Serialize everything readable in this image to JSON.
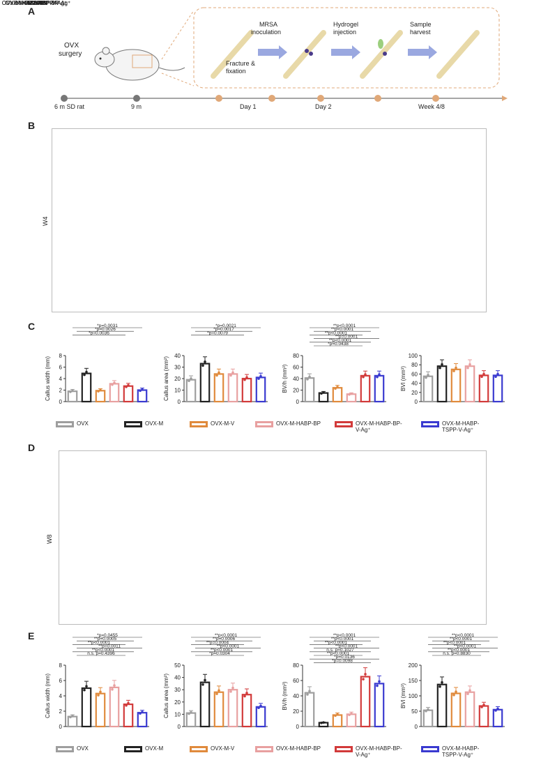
{
  "panels": {
    "A": "A",
    "B": "B",
    "C": "C",
    "D": "D",
    "E": "E"
  },
  "schematic": {
    "ovx_surgery_1": "OVX",
    "ovx_surgery_2": "surgery",
    "mrsa_1": "MRSA",
    "mrsa_2": "inoculation",
    "hydrogel_1": "Hydrogel",
    "hydrogel_2": "injection",
    "sample_1": "Sample",
    "sample_2": "harvest",
    "fracture_1": "Fracture &",
    "fracture_2": "fixation",
    "timeline": [
      "6 m SD rat",
      "9 m",
      "Day 1",
      "Day 2",
      "Week 4/8"
    ]
  },
  "groups": [
    "OVX",
    "OVX-M",
    "OVX-M-V",
    "OVX-M-HABP-BP",
    "OVX-M-HABP-BP-V-Ag⁺",
    "OVX-M-HABP-TSPP-V-Ag⁺"
  ],
  "group_colors": [
    "#9e9e9e",
    "#222222",
    "#e08a3c",
    "#e8a0a0",
    "#d23a3a",
    "#3a3ad0"
  ],
  "rows": {
    "w4": "W4",
    "w8": "W8"
  },
  "legend_c": [
    "OVX",
    "OVX-M",
    "OVX-M-V",
    "OVX-M-HABP-BP",
    "OVX-M-HABP-BP-V-Ag⁺",
    "OVX-M-HABP-TSPP-V-Ag⁺"
  ],
  "legend_e": [
    "OVX",
    "OVX-M",
    "OVX-M-V",
    "OVX-M-HABP-BP",
    "OVX-M-HABP-BP-V-Ag⁺",
    "OVX-M-HABP-TSPP-V-Ag⁺"
  ],
  "chart_data": [
    {
      "type": "bar",
      "panel": "C",
      "ylabel": "Callus width (mm)",
      "ylim": [
        0,
        8
      ],
      "yticks": [
        0,
        2,
        4,
        6,
        8
      ],
      "values": [
        1.8,
        4.9,
        1.9,
        3.1,
        2.7,
        2.0
      ],
      "annotations": [
        "*p=0.0031",
        "*p=0.0026",
        "*p=0.0036"
      ]
    },
    {
      "type": "bar",
      "panel": "C",
      "ylabel": "Callus area (mm²)",
      "ylim": [
        0,
        40
      ],
      "yticks": [
        0,
        10,
        20,
        30,
        40
      ],
      "values": [
        19,
        33,
        24,
        24,
        20,
        21
      ],
      "annotations": [
        "*p=0.0021",
        "*p=0.0017",
        "*p=0.0079"
      ]
    },
    {
      "type": "bar",
      "panel": "C",
      "ylabel": "BV/h (mm³)",
      "ylim": [
        0,
        80
      ],
      "yticks": [
        0,
        20,
        40,
        60,
        80
      ],
      "values": [
        41,
        15,
        24,
        13,
        45,
        45
      ],
      "annotations": [
        "**p<0.0001",
        "**p<0.0001",
        "**p<0.0001",
        "**p=0.0001",
        "**p<0.0001",
        "*p=0.0438"
      ]
    },
    {
      "type": "bar",
      "panel": "C",
      "ylabel": "BVl (mm³)",
      "ylim": [
        0,
        100
      ],
      "yticks": [
        0,
        20,
        40,
        60,
        80,
        100
      ],
      "values": [
        55,
        77,
        70,
        77,
        57,
        57
      ],
      "annotations": []
    },
    {
      "type": "bar",
      "panel": "E",
      "ylabel": "Callus width (mm)",
      "ylim": [
        0,
        8
      ],
      "yticks": [
        0,
        2,
        4,
        6,
        8
      ],
      "values": [
        1.3,
        5.0,
        4.3,
        5.1,
        2.9,
        1.8
      ],
      "annotations": [
        "*p=0.0455",
        "**p=0.0005",
        "**p<0.0001",
        "**p=0.0011",
        "**p<0.0001",
        "n.s. p=0.4396"
      ]
    },
    {
      "type": "bar",
      "panel": "E",
      "ylabel": "Callus area (mm²)",
      "ylim": [
        0,
        50
      ],
      "yticks": [
        0,
        10,
        20,
        30,
        40,
        50
      ],
      "values": [
        11,
        36,
        28,
        30,
        26,
        16
      ],
      "annotations": [
        "**p<0.0001",
        "**p=0.0006",
        "**p=0.0004",
        "**p<0.0001",
        "**p<0.0001",
        "*p=0.0304"
      ]
    },
    {
      "type": "bar",
      "panel": "E",
      "ylabel": "BV/h (mm³)",
      "ylim": [
        0,
        80
      ],
      "yticks": [
        0,
        20,
        40,
        60,
        80
      ],
      "values": [
        44,
        5,
        15,
        16,
        65,
        56
      ],
      "annotations": [
        "**p<0.0001",
        "**p<0.0001",
        "**p<0.0001",
        "**p<0.0001",
        "n.s. p=0.1027",
        "**p<0.0001",
        "*p=0.0136",
        "*p=0.0098"
      ]
    },
    {
      "type": "bar",
      "panel": "E",
      "ylabel": "BVl (mm³)",
      "ylim": [
        0,
        200
      ],
      "yticks": [
        0,
        50,
        100,
        150,
        200
      ],
      "values": [
        53,
        137,
        108,
        112,
        67,
        55
      ],
      "annotations": [
        "**p<0.0001",
        "**p<0.0001",
        "**p<0.0001",
        "**p<0.0001",
        "**p<0.0001",
        "n.s. p=0.8830"
      ]
    }
  ]
}
